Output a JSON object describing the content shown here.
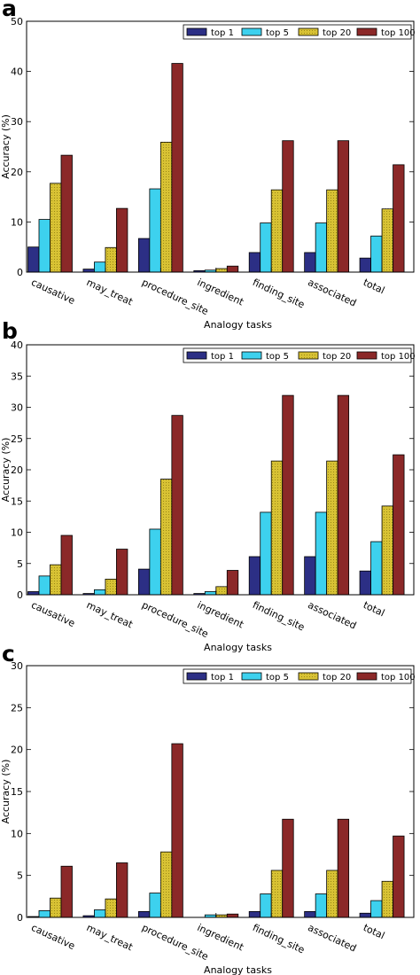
{
  "colors": {
    "top1": "#2c2f85",
    "top5": "#3dd1ee",
    "top20": "#d8c234",
    "top100": "#8b2828"
  },
  "chart_data": [
    {
      "panel_label": "a",
      "type": "bar",
      "categories": [
        "causative",
        "may_treat",
        "procedure_site",
        "ingredient",
        "finding_site",
        "associated",
        "total"
      ],
      "series": [
        {
          "name": "top 1",
          "values": [
            5.0,
            0.6,
            6.7,
            0.3,
            3.9,
            3.9,
            2.8
          ]
        },
        {
          "name": "top 5",
          "values": [
            10.5,
            2.0,
            16.6,
            0.4,
            9.8,
            9.8,
            7.2
          ]
        },
        {
          "name": "top 20",
          "values": [
            17.7,
            4.9,
            25.9,
            0.7,
            16.4,
            16.4,
            12.6
          ]
        },
        {
          "name": "top 100",
          "values": [
            23.3,
            12.7,
            41.6,
            1.2,
            26.2,
            26.2,
            21.4
          ]
        }
      ],
      "xlabel": "Analogy tasks",
      "ylabel": "Accuracy (%)",
      "ylim": [
        0,
        50
      ],
      "yticks": [
        "0",
        "10",
        "20",
        "30",
        "40",
        "50"
      ],
      "grid": false,
      "legend": "top-right"
    },
    {
      "panel_label": "b",
      "type": "bar",
      "categories": [
        "causative",
        "may_treat",
        "procedure_site",
        "ingredient",
        "finding_site",
        "associated",
        "total"
      ],
      "series": [
        {
          "name": "top 1",
          "values": [
            0.5,
            0.2,
            4.1,
            0.2,
            6.1,
            6.1,
            3.8
          ]
        },
        {
          "name": "top 5",
          "values": [
            3.0,
            0.8,
            10.5,
            0.5,
            13.2,
            13.2,
            8.5
          ]
        },
        {
          "name": "top 20",
          "values": [
            4.8,
            2.5,
            18.5,
            1.3,
            21.4,
            21.4,
            14.2
          ]
        },
        {
          "name": "top 100",
          "values": [
            9.5,
            7.3,
            28.7,
            3.9,
            31.9,
            31.9,
            22.4
          ]
        }
      ],
      "xlabel": "Analogy tasks",
      "ylabel": "Accuracy (%)",
      "ylim": [
        0,
        40
      ],
      "yticks": [
        "0",
        "5",
        "10",
        "15",
        "20",
        "25",
        "30",
        "35",
        "40"
      ],
      "grid": false,
      "legend": "top-right"
    },
    {
      "panel_label": "c",
      "type": "bar",
      "categories": [
        "causative",
        "may_treat",
        "procedure_site",
        "ingredient",
        "finding_site",
        "associated",
        "total"
      ],
      "series": [
        {
          "name": "top 1",
          "values": [
            0.1,
            0.2,
            0.7,
            0.0,
            0.7,
            0.7,
            0.5
          ]
        },
        {
          "name": "top 5",
          "values": [
            0.8,
            0.9,
            2.9,
            0.3,
            2.8,
            2.8,
            2.0
          ]
        },
        {
          "name": "top 20",
          "values": [
            2.3,
            2.2,
            7.8,
            0.3,
            5.6,
            5.6,
            4.3
          ]
        },
        {
          "name": "top 100",
          "values": [
            6.1,
            6.5,
            20.7,
            0.4,
            11.7,
            11.7,
            9.7
          ]
        }
      ],
      "xlabel": "Analogy tasks",
      "ylabel": "Accuracy (%)",
      "ylim": [
        0,
        30
      ],
      "yticks": [
        "0",
        "5",
        "10",
        "15",
        "20",
        "25",
        "30"
      ],
      "grid": false,
      "legend": "top-right"
    }
  ]
}
